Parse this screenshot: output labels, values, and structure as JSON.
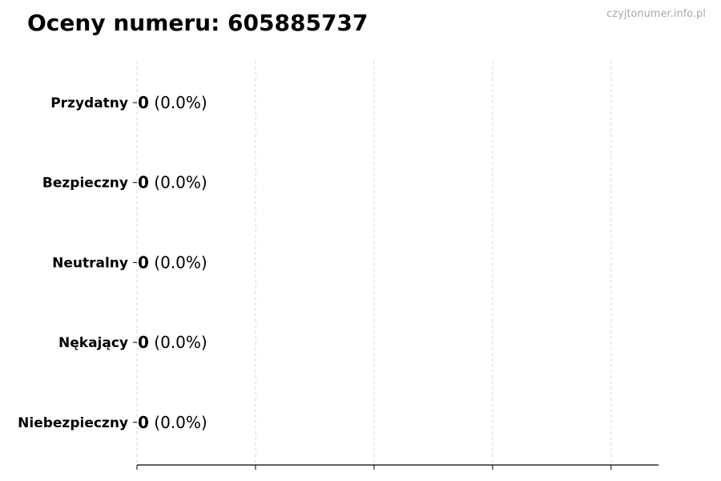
{
  "title": "Oceny numeru: 605885737",
  "watermark": "czyjtonumer.info.pl",
  "chart_data": {
    "type": "bar",
    "orientation": "horizontal",
    "title": "Oceny numeru: 605885737",
    "categories": [
      "Przydatny",
      "Bezpieczny",
      "Neutralny",
      "Nękający",
      "Niebezpieczny"
    ],
    "values": [
      0,
      0,
      0,
      0,
      0
    ],
    "data_labels": [
      {
        "count": "0",
        "percent": "(0.0%)"
      },
      {
        "count": "0",
        "percent": "(0.0%)"
      },
      {
        "count": "0",
        "percent": "(0.0%)"
      },
      {
        "count": "0",
        "percent": "(0.0%)"
      },
      {
        "count": "0",
        "percent": "(0.0%)"
      }
    ],
    "xlim": [
      0,
      4.4
    ],
    "xticks": [
      0,
      1,
      2,
      3,
      4
    ],
    "xtick_labels_shown": false,
    "grid": "vertical dashed",
    "bar_edge_color": "#000000",
    "grid_color": "#d9d9d9"
  }
}
